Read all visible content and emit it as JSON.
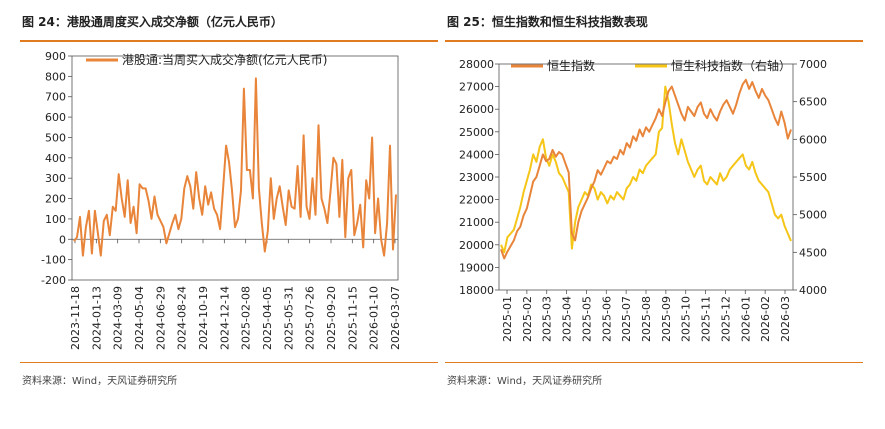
{
  "left": {
    "title": "图 24：港股通周度买入成交净额（亿元人民币）",
    "source": "资料来源：Wind，天风证券研究所"
  },
  "right": {
    "title": "图 25：恒生指数和恒生科技指数表现",
    "source": "资料来源：Wind，天风证券研究所"
  },
  "colors": {
    "accent": "#e07b20",
    "orange": "#e8853a",
    "yellow": "#f5c518"
  },
  "chart_data": [
    {
      "type": "line",
      "title": "",
      "legend": [
        "港股通:当周买入成交净额(亿元人民币)"
      ],
      "legend_position": "top",
      "ylim": [
        -200,
        900
      ],
      "yticks": [
        "-200",
        "-100",
        "0",
        "100",
        "200",
        "300",
        "400",
        "500",
        "600",
        "700",
        "800",
        "900"
      ],
      "xticks": [
        "2023-11-18",
        "2024-01-13",
        "2024-03-09",
        "2024-05-04",
        "2024-06-29",
        "2024-08-24",
        "2024-10-19",
        "2024-12-14",
        "2025-02-08",
        "2025-04-05",
        "2025-05-31",
        "2025-07-26",
        "2025-09-20",
        "2025-11-15",
        "2026-01-10",
        "2026-03-07"
      ],
      "series": [
        {
          "name": "港股通:当周买入成交净额(亿元人民币)",
          "values": [
            -10,
            10,
            110,
            -80,
            60,
            140,
            -70,
            140,
            30,
            -80,
            90,
            120,
            20,
            160,
            140,
            320,
            200,
            110,
            290,
            80,
            160,
            30,
            270,
            250,
            250,
            190,
            100,
            210,
            120,
            90,
            60,
            -20,
            30,
            80,
            120,
            50,
            100,
            250,
            310,
            260,
            150,
            330,
            200,
            120,
            260,
            170,
            230,
            150,
            120,
            50,
            250,
            460,
            380,
            240,
            60,
            100,
            240,
            740,
            340,
            340,
            200,
            790,
            250,
            80,
            -60,
            40,
            300,
            100,
            200,
            260,
            160,
            70,
            240,
            160,
            150,
            360,
            110,
            510,
            160,
            100,
            300,
            120,
            560,
            200,
            150,
            80,
            230,
            400,
            370,
            110,
            390,
            10,
            300,
            340,
            20,
            80,
            170,
            -40,
            290,
            200,
            500,
            30,
            200,
            0,
            -80,
            80,
            460,
            -50,
            220
          ]
        }
      ]
    },
    {
      "type": "line",
      "title": "",
      "legend": [
        "恒生指数",
        "恒生科技指数（右轴）"
      ],
      "legend_position": "top",
      "ylim": [
        18000,
        28000
      ],
      "ylim_right": [
        4000,
        7000
      ],
      "yticks": [
        "18000",
        "19000",
        "20000",
        "21000",
        "22000",
        "23000",
        "24000",
        "25000",
        "26000",
        "27000",
        "28000"
      ],
      "yticks_right": [
        "4000",
        "4500",
        "5000",
        "5500",
        "6000",
        "6500",
        "7000"
      ],
      "xticks": [
        "2025-01",
        "2025-02",
        "2025-03",
        "2025-04",
        "2025-05",
        "2025-06",
        "2025-07",
        "2025-08",
        "2025-09",
        "2025-10",
        "2025-11",
        "2025-12",
        "2026-01",
        "2026-02",
        "2026-03"
      ],
      "series": [
        {
          "name": "恒生指数",
          "axis": "left",
          "values": [
            19800,
            19400,
            19700,
            19950,
            20200,
            20600,
            20800,
            21300,
            21600,
            22200,
            22800,
            23000,
            23500,
            24000,
            23700,
            23800,
            24200,
            23900,
            24100,
            24000,
            23600,
            23200,
            20500,
            20200,
            21000,
            21500,
            21800,
            22100,
            22500,
            22800,
            23300,
            23100,
            23400,
            23700,
            23600,
            23900,
            23800,
            24200,
            24000,
            24500,
            24300,
            24800,
            24600,
            25100,
            24800,
            25200,
            25000,
            25300,
            25600,
            26000,
            25700,
            26300,
            26800,
            27000,
            26600,
            26200,
            25800,
            25500,
            26100,
            25900,
            25700,
            26100,
            26300,
            25800,
            25600,
            26000,
            25700,
            25500,
            25900,
            26200,
            26400,
            26100,
            25800,
            26200,
            26700,
            27100,
            27300,
            26900,
            27200,
            26800,
            26500,
            26900,
            26600,
            26400,
            26000,
            25600,
            25300,
            25900,
            25400,
            24700,
            25100
          ]
        },
        {
          "name": "恒生科技指数（右轴）",
          "axis": "right",
          "values": [
            4600,
            4500,
            4700,
            4750,
            4800,
            4950,
            5100,
            5300,
            5450,
            5600,
            5800,
            5700,
            5900,
            6000,
            5750,
            5650,
            5800,
            5700,
            5550,
            5500,
            5400,
            5300,
            4550,
            4900,
            5100,
            5200,
            5300,
            5250,
            5400,
            5350,
            5200,
            5300,
            5250,
            5150,
            5250,
            5200,
            5300,
            5250,
            5200,
            5350,
            5400,
            5500,
            5450,
            5600,
            5550,
            5650,
            5700,
            5750,
            5800,
            6100,
            6150,
            6700,
            6500,
            6200,
            5950,
            5800,
            6000,
            5850,
            5700,
            5600,
            5500,
            5600,
            5650,
            5450,
            5400,
            5500,
            5450,
            5400,
            5550,
            5450,
            5500,
            5600,
            5650,
            5700,
            5750,
            5800,
            5650,
            5600,
            5700,
            5550,
            5450,
            5400,
            5350,
            5300,
            5150,
            5000,
            4950,
            5000,
            4850,
            4750,
            4650
          ]
        }
      ]
    }
  ]
}
